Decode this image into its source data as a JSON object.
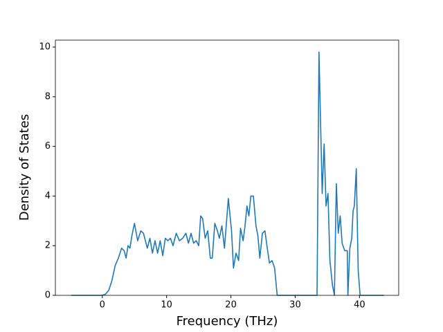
{
  "chart_data": {
    "type": "line",
    "xlabel": "Frequency (THz)",
    "ylabel": "Density of States",
    "x": [
      -4.8,
      0,
      0.5,
      1,
      1.5,
      2,
      2.5,
      3,
      3.4,
      3.7,
      4,
      4.3,
      4.6,
      5,
      5.5,
      6,
      6.4,
      7,
      7.4,
      7.8,
      8.2,
      8.6,
      9,
      9.4,
      9.8,
      10.2,
      10.6,
      11,
      11.5,
      12,
      12.5,
      13,
      13.4,
      13.8,
      14.2,
      14.6,
      15,
      15.3,
      15.6,
      16,
      16.4,
      16.8,
      17.1,
      17.5,
      17.9,
      18.2,
      18.6,
      19,
      19.6,
      20.1,
      20.4,
      20.8,
      21.2,
      21.5,
      21.9,
      22.2,
      22.5,
      22.8,
      23.1,
      23.5,
      23.9,
      24.2,
      24.5,
      24.9,
      25.3,
      25.6,
      26,
      26.4,
      26.8,
      27.2,
      33.4,
      33.7,
      34.2,
      34.5,
      34.8,
      35.1,
      35.4,
      35.8,
      36.1,
      36.4,
      36.7,
      37,
      37.3,
      37.7,
      38.1,
      38.2,
      38.5,
      38.8,
      39,
      39.2,
      39.5,
      39.8,
      40.1,
      43.8
    ],
    "series": [
      {
        "color": "#1f77b4",
        "values": [
          0,
          0,
          0.05,
          0.2,
          0.6,
          1.2,
          1.5,
          1.9,
          1.8,
          1.5,
          2.0,
          1.9,
          2.4,
          2.9,
          2.2,
          2.6,
          2.5,
          1.9,
          2.3,
          1.7,
          2.2,
          1.7,
          2.2,
          1.6,
          2.3,
          2.2,
          2.3,
          2.0,
          2.5,
          2.2,
          2.3,
          2.5,
          2.1,
          2.5,
          2.1,
          2.2,
          2.0,
          3.2,
          3.1,
          2.3,
          2.6,
          1.5,
          1.5,
          2.9,
          2.6,
          2.3,
          2.8,
          1.9,
          3.9,
          2.6,
          1.1,
          1.7,
          1.4,
          2.7,
          2.2,
          2.8,
          3.6,
          3.2,
          4.0,
          4.0,
          2.8,
          2.4,
          1.5,
          2.5,
          2.6,
          2.0,
          1.3,
          1.4,
          1.1,
          0,
          0,
          9.8,
          4.1,
          6.1,
          3.6,
          4.1,
          1.4,
          0.4,
          0,
          4.5,
          2.5,
          3.2,
          2.1,
          1.8,
          1.8,
          0,
          1.9,
          2.3,
          3.4,
          3.6,
          5.1,
          1.0,
          0,
          0
        ]
      }
    ],
    "xlim": [
      -7.3,
      46.1
    ],
    "xticks": [
      0,
      10,
      20,
      30,
      40
    ],
    "ylim": [
      0,
      10.28
    ],
    "yticks": [
      0,
      2,
      4,
      6,
      8,
      10
    ]
  }
}
